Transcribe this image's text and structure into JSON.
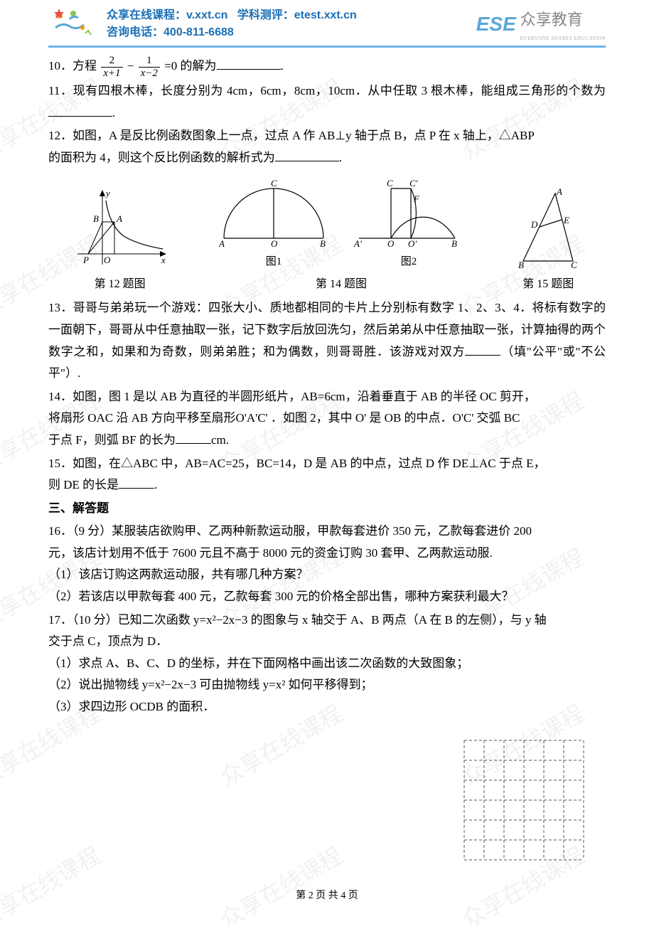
{
  "header": {
    "line1_a": "众享在线课程：",
    "line1_b": "v.xxt.cn",
    "line1_c": "学科测评：",
    "line1_d": "etest.xxt.cn",
    "line2_a": "咨询电话：",
    "line2_b": "400-811-6688",
    "logo_ese": "ESE",
    "logo_cn": "众享教育",
    "logo_sub": "EVERYONE SHARES EDUCATION",
    "accent_color": "#1a6fb5",
    "border_color": "#6db3e8"
  },
  "watermark_text": "众享在线课程",
  "q10": {
    "prefix": "10．方程",
    "frac1_num": "2",
    "frac1_den": "x+1",
    "minus": "−",
    "frac2_num": "1",
    "frac2_den": "x−2",
    "suffix": "=0 的解为",
    "end": "."
  },
  "q11": {
    "text": "11．现有四根木棒，长度分别为 4cm，6cm，8cm，10cm．从中任取 3 根木棒，能组成三角形的个数为",
    "end": "."
  },
  "q12": {
    "line1": "12．如图，A 是反比例函数图象上一点，过点 A 作 AB⊥y 轴于点 B，点 P 在 x 轴上，△ABP",
    "line2": "的面积为 4，则这个反比例函数的解析式为",
    "end": "."
  },
  "diagrams": {
    "d12": {
      "labels": {
        "y": "y",
        "x": "x",
        "B": "B",
        "A": "A",
        "P": "P",
        "O": "O"
      },
      "caption": "第 12 题图"
    },
    "d14": {
      "fig1": {
        "A": "A",
        "B": "B",
        "C": "C",
        "O": "O",
        "label": "图1"
      },
      "fig2": {
        "Ap": "A'",
        "B": "B",
        "C": "C",
        "Cp": "C'",
        "O": "O",
        "Op": "O'",
        "F": "F",
        "label": "图2"
      },
      "caption": "第 14 题图"
    },
    "d15": {
      "A": "A",
      "B": "B",
      "C": "C",
      "D": "D",
      "E": "E",
      "caption": "第 15 题图"
    }
  },
  "q13": {
    "text": "13．哥哥与弟弟玩一个游戏：四张大小、质地都相同的卡片上分别标有数字 1、2、3、4．将标有数字的一面朝下，哥哥从中任意抽取一张，记下数字后放回洗匀，然后弟弟从中任意抽取一张，计算抽得的两个数字之和，如果和为奇数，则弟弟胜；和为偶数，则哥哥胜．该游戏对双方",
    "hint": "（填\"公平\"或\"不公平\"）."
  },
  "q14": {
    "l1": "14．如图，图 1 是以 AB 为直径的半圆形纸片，AB=6cm，沿着垂直于 AB 的半径 OC 剪开，",
    "l2": "将扇形 OAC 沿 AB 方向平移至扇形O'A'C' ．如图 2，其中 O' 是 OB 的中点．O'C' 交弧 BC",
    "l3a": "于点 F，则弧 BF 的长为",
    "l3b": "cm."
  },
  "q15": {
    "l1": "15．如图，在△ABC 中，AB=AC=25，BC=14，D 是 AB 的中点，过点 D 作 DE⊥AC 于点 E，",
    "l2a": "则 DE 的长是",
    "l2b": "."
  },
  "section3": "三、解答题",
  "q16": {
    "l1": "16．（9 分）某服装店欲购甲、乙两种新款运动服，甲款每套进价 350 元，乙款每套进价 200",
    "l2": "元，该店计划用不低于 7600 元且不高于 8000 元的资金订购 30 套甲、乙两款运动服.",
    "s1": "（1）该店订购这两款运动服，共有哪几种方案？",
    "s2": "（2）若该店以甲款每套 400 元，乙款每套 300 元的价格全部出售，哪种方案获利最大？"
  },
  "q17": {
    "l1": "17．（10 分）已知二次函数 y=x²−2x−3 的图象与 x 轴交于 A、B 两点（A 在 B 的左侧），与 y 轴",
    "l2": "交于点 C，顶点为 D．",
    "s1": "（1）求点 A、B、C、D 的坐标，并在下面网格中画出该二次函数的大致图象；",
    "s2": "（2）说出抛物线 y=x²−2x−3 可由抛物线 y=x² 如何平移得到；",
    "s3": "（3）求四边形 OCDB 的面积．"
  },
  "grid": {
    "cols": 6,
    "rows": 6,
    "cell_size": 28,
    "stroke": "#555",
    "dash": "4,3"
  },
  "footer": "第 2 页 共 4 页"
}
